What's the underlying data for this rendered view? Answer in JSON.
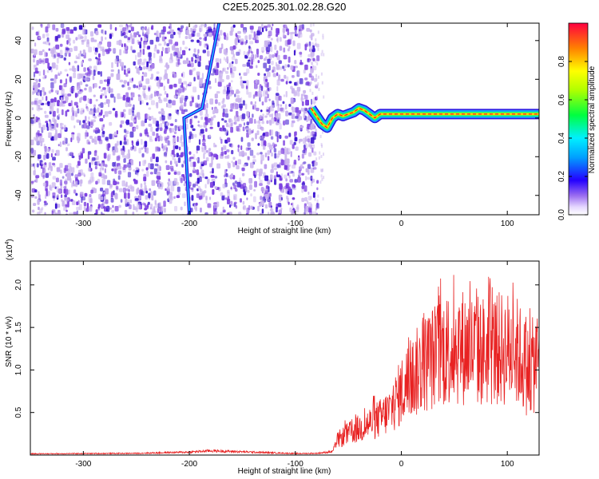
{
  "title": "C2E5.2025.301.02.28.G20",
  "colors": {
    "snr_line": "#e82222",
    "spec_low": "#c9b3ee",
    "spec_mid": "#7a3de0",
    "spec_high": "#3a14d0"
  },
  "chart_data": [
    {
      "type": "heatmap",
      "name": "spectrogram",
      "title": "",
      "xlabel": "Height of straight line (km)",
      "ylabel": "Frequency (Hz)",
      "xlim": [
        -350,
        130
      ],
      "ylim": [
        -50,
        49
      ],
      "xticks": [
        -300,
        -200,
        -100,
        0,
        100
      ],
      "yticks": [
        -40,
        -20,
        0,
        20,
        40
      ],
      "xtick_labels": [
        "-300",
        "-200",
        "-100",
        "0",
        "100"
      ],
      "ytick_labels": [
        "-40",
        "-20",
        "0",
        "20",
        "40"
      ],
      "noise_region_x": [
        -350,
        -80
      ],
      "diagonal_track": {
        "x": [
          -200,
          -205,
          -188,
          -172
        ],
        "y": [
          -50,
          0,
          5,
          49
        ]
      },
      "narrowband_signal": {
        "x": [
          -85,
          -80,
          -75,
          -70,
          -65,
          -60,
          -55,
          -50,
          -45,
          -40,
          -35,
          -30,
          -25,
          -20,
          -10,
          0,
          20,
          40,
          60,
          80,
          100,
          130
        ],
        "y": [
          5,
          1,
          -3,
          -5,
          0,
          2,
          1,
          2,
          3,
          5,
          4,
          2,
          0,
          2,
          2,
          2,
          2,
          2,
          2,
          2,
          2,
          2
        ]
      },
      "colorbar": {
        "label": "Normalized spectral amplitude",
        "range": [
          0.0,
          1.0
        ],
        "ticks": [
          0.0,
          0.2,
          0.4,
          0.6,
          0.8
        ],
        "tick_labels": [
          "0.0",
          "0.2",
          "0.4",
          "0.6",
          "0.8"
        ]
      }
    },
    {
      "type": "line",
      "name": "snr",
      "title": "",
      "xlabel": "Height of straight line (km)",
      "ylabel": "SNR (10 * v/v)",
      "y_multiplier_label": "(x10",
      "y_multiplier_exp": "4",
      "y_multiplier_close": ")",
      "xlim": [
        -350,
        130
      ],
      "ylim": [
        0,
        22800
      ],
      "xticks": [
        -300,
        -200,
        -100,
        0,
        100
      ],
      "yticks": [
        5000,
        10000,
        15000,
        20000
      ],
      "xtick_labels": [
        "-300",
        "-200",
        "-100",
        "0",
        "100"
      ],
      "ytick_labels": [
        "0.5",
        "1.0",
        "1.5",
        "2.0"
      ],
      "series": [
        {
          "name": "SNR",
          "x": [
            -350,
            -250,
            -200,
            -180,
            -150,
            -120,
            -100,
            -80,
            -65,
            -60,
            -50,
            -40,
            -30,
            -20,
            -10,
            0,
            10,
            20,
            30,
            40,
            50,
            60,
            70,
            80,
            90,
            100,
            110,
            120,
            130
          ],
          "y": [
            150,
            200,
            350,
            500,
            380,
            260,
            180,
            200,
            400,
            1800,
            2500,
            3100,
            3700,
            4300,
            5300,
            7500,
            9000,
            10500,
            11500,
            12300,
            12800,
            12700,
            12300,
            12200,
            12400,
            12500,
            12000,
            9800,
            11500
          ]
        }
      ]
    }
  ]
}
